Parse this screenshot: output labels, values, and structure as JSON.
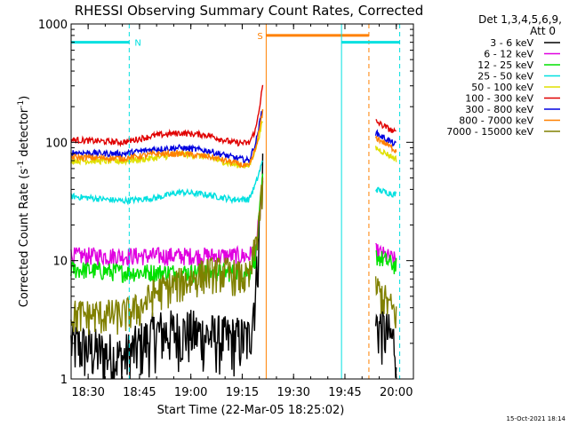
{
  "chart_data": {
    "type": "line",
    "title": "RHESSI Observing Summary Count Rates, Corrected",
    "xlabel": "Start Time (22-Mar-05 18:25:02)",
    "ylabel": "Corrected Count Rate (s⁻¹ detector⁻¹)",
    "ylabel_main": "Corrected Count Rate (s",
    "ylabel_sup1": "-1",
    "ylabel_mid": " detector",
    "ylabel_sup2": "-1",
    "ylabel_end": ")",
    "y_scale": "log",
    "ylim": [
      1,
      1000
    ],
    "xlim": [
      "18:25:02",
      "20:05:00"
    ],
    "x_ticks": [
      "18:30",
      "18:45",
      "19:00",
      "19:15",
      "19:30",
      "19:45",
      "20:00"
    ],
    "y_ticks": [
      "1",
      "10",
      "100",
      "1000"
    ],
    "legend_title": "Det 1,3,4,5,6,9,",
    "legend_att": "Att 0",
    "legend_position": "top-right",
    "footer_date": "15-Oct-2021 18:14",
    "series": [
      {
        "name": "3 - 6 keV",
        "color": "#000000",
        "points": [
          [
            "18:25",
            2
          ],
          [
            "18:40",
            1.5
          ],
          [
            "18:50",
            2.5
          ],
          [
            "19:00",
            2.5
          ],
          [
            "19:10",
            2.2
          ],
          [
            "19:17",
            2.2
          ],
          [
            "19:19",
            6
          ],
          [
            "19:21",
            60
          ]
        ],
        "post": [
          [
            "19:54",
            3
          ],
          [
            "20:00",
            2
          ]
        ]
      },
      {
        "name": "6 - 12 keV",
        "color": "#e000e0",
        "points": [
          [
            "18:25",
            11
          ],
          [
            "18:45",
            11
          ],
          [
            "19:00",
            11
          ],
          [
            "19:10",
            11
          ],
          [
            "19:17",
            11
          ],
          [
            "19:19",
            13
          ],
          [
            "19:21",
            40
          ]
        ],
        "post": [
          [
            "19:54",
            12
          ],
          [
            "20:00",
            10
          ]
        ]
      },
      {
        "name": "12 - 25 keV",
        "color": "#00e000",
        "points": [
          [
            "18:25",
            8.5
          ],
          [
            "18:40",
            8
          ],
          [
            "18:50",
            8
          ],
          [
            "19:00",
            8
          ],
          [
            "19:10",
            8
          ],
          [
            "19:17",
            8
          ],
          [
            "19:19",
            11
          ],
          [
            "19:21",
            50
          ]
        ],
        "post": [
          [
            "19:54",
            11
          ],
          [
            "20:00",
            9
          ]
        ]
      },
      {
        "name": "25 - 50 keV",
        "color": "#00e0e0",
        "points": [
          [
            "18:25",
            35
          ],
          [
            "18:40",
            32
          ],
          [
            "18:50",
            34
          ],
          [
            "18:57",
            38
          ],
          [
            "19:05",
            36
          ],
          [
            "19:12",
            33
          ],
          [
            "19:17",
            33
          ],
          [
            "19:19",
            45
          ],
          [
            "19:21",
            70
          ]
        ],
        "post": [
          [
            "19:54",
            40
          ],
          [
            "20:00",
            36
          ]
        ]
      },
      {
        "name": "50 - 100 keV",
        "color": "#e0e000",
        "points": [
          [
            "18:25",
            70
          ],
          [
            "18:40",
            69
          ],
          [
            "18:50",
            74
          ],
          [
            "18:57",
            80
          ],
          [
            "19:05",
            75
          ],
          [
            "19:12",
            65
          ],
          [
            "19:17",
            63
          ],
          [
            "19:19",
            90
          ],
          [
            "19:21",
            150
          ]
        ],
        "post": [
          [
            "19:54",
            90
          ],
          [
            "20:00",
            72
          ]
        ]
      },
      {
        "name": "100 - 300 keV",
        "color": "#e00000",
        "points": [
          [
            "18:25",
            105
          ],
          [
            "18:40",
            100
          ],
          [
            "18:50",
            115
          ],
          [
            "18:57",
            120
          ],
          [
            "19:05",
            115
          ],
          [
            "19:12",
            100
          ],
          [
            "19:17",
            98
          ],
          [
            "19:19",
            130
          ],
          [
            "19:21",
            300
          ]
        ],
        "post": [
          [
            "19:54",
            150
          ],
          [
            "20:00",
            120
          ]
        ]
      },
      {
        "name": "300 - 800 keV",
        "color": "#0000e0",
        "points": [
          [
            "18:25",
            82
          ],
          [
            "18:40",
            80
          ],
          [
            "18:50",
            88
          ],
          [
            "18:57",
            90
          ],
          [
            "19:05",
            85
          ],
          [
            "19:12",
            75
          ],
          [
            "19:17",
            70
          ],
          [
            "19:19",
            100
          ],
          [
            "19:21",
            200
          ]
        ],
        "post": [
          [
            "19:54",
            120
          ],
          [
            "20:00",
            95
          ]
        ]
      },
      {
        "name": "800 - 7000 keV",
        "color": "#ff8000",
        "points": [
          [
            "18:25",
            75
          ],
          [
            "18:40",
            73
          ],
          [
            "18:50",
            80
          ],
          [
            "18:57",
            80
          ],
          [
            "19:05",
            76
          ],
          [
            "19:12",
            68
          ],
          [
            "19:17",
            62
          ],
          [
            "19:19",
            90
          ],
          [
            "19:21",
            180
          ]
        ],
        "post": [
          [
            "19:54",
            110
          ],
          [
            "20:00",
            85
          ]
        ]
      },
      {
        "name": "7000 - 15000 keV",
        "color": "#808000",
        "points": [
          [
            "18:25",
            3.5
          ],
          [
            "18:40",
            3.5
          ],
          [
            "18:45",
            4
          ],
          [
            "18:50",
            5.5
          ],
          [
            "19:00",
            7
          ],
          [
            "19:05",
            8
          ],
          [
            "19:10",
            8
          ],
          [
            "19:17",
            7
          ],
          [
            "19:19",
            14
          ],
          [
            "19:21",
            40
          ]
        ],
        "post": [
          [
            "19:54",
            6
          ],
          [
            "20:00",
            3.5
          ]
        ]
      }
    ],
    "markers": [
      {
        "label": "N",
        "color": "#00e0e0",
        "y": 700,
        "x_from": "18:25:02",
        "x_to": "18:42:00",
        "x_dashed_right": "18:42:00"
      },
      {
        "label": "S",
        "color": "#ff8000",
        "y": 800,
        "x_from": "19:22:00",
        "x_to": "19:52:00",
        "x_solid_left": "19:22:00",
        "x_dashed_right": "19:52:00"
      },
      {
        "label": "",
        "color": "#00e0e0",
        "y": 700,
        "x_from": "19:44:00",
        "x_to": "20:01:00",
        "x_solid_left": "19:44:00",
        "x_dashed_right": "20:01:00"
      }
    ]
  }
}
